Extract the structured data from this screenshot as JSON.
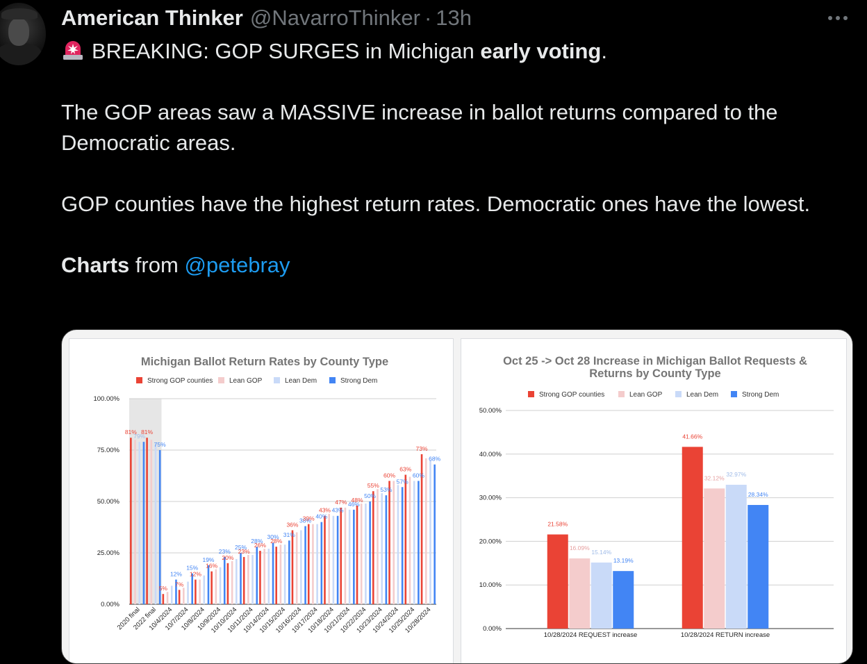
{
  "tweet": {
    "name": "American Thinker",
    "handle": "@NavarroThinker",
    "separator": "·",
    "time": "13h",
    "line1_text": "BREAKING: GOP SURGES in Michigan ",
    "line1_bold": "early voting",
    "line1_end": ".",
    "para2": "The GOP areas saw a MASSIVE increase in ballot returns compared to the Democratic areas.",
    "para3": "GOP counties have the highest return rates. Democratic ones have the lowest.",
    "charts_bold": "Charts",
    "charts_from": " from ",
    "mention": "@petebray"
  },
  "icons": {
    "siren": "police-siren-icon",
    "more": "more-horizontal-icon"
  },
  "colors": {
    "strong_gop": "#ea4335",
    "lean_gop": "#f4cccc",
    "lean_dem": "#c9daf8",
    "strong_dem": "#4285f4",
    "link": "#1d9bf0"
  },
  "chart_data": [
    {
      "type": "bar",
      "title": "Michigan Ballot Return Rates by County Type",
      "categories": [
        "2020 final",
        "2022 final",
        "10/4/2024",
        "10/7/2024",
        "10/8/2024",
        "10/9/2024",
        "10/10/2024",
        "10/11/2024",
        "10/14/2024",
        "10/15/2024",
        "10/16/2024",
        "10/17/2024",
        "10/18/2024",
        "10/21/2024",
        "10/22/2024",
        "10/23/2024",
        "10/24/2024",
        "10/25/2024",
        "10/28/2024"
      ],
      "series": [
        {
          "name": "Strong GOP counties",
          "values": [
            81,
            81,
            5,
            7,
            12,
            16,
            20,
            23,
            26,
            28,
            36,
            39,
            43,
            47,
            48,
            55,
            60,
            63,
            73
          ]
        },
        {
          "name": "Lean GOP",
          "values": [
            80,
            80,
            6,
            8,
            12,
            17,
            21,
            24,
            27,
            29,
            35,
            39,
            44,
            47,
            49,
            56,
            60,
            62,
            71
          ]
        },
        {
          "name": "Lean Dem",
          "values": [
            79,
            78,
            9,
            11,
            14,
            18,
            22,
            24,
            27,
            29,
            36,
            39,
            43,
            46,
            49,
            54,
            58,
            60,
            70
          ]
        },
        {
          "name": "Strong Dem",
          "values": [
            79,
            75,
            12,
            15,
            19,
            23,
            25,
            28,
            30,
            31,
            38,
            40,
            43,
            46,
            50,
            53,
            57,
            60,
            68
          ]
        }
      ],
      "data_labels": [
        {
          "i": 0,
          "s": 0,
          "t": "81%"
        },
        {
          "i": 0,
          "s": 2,
          "t": "79%"
        },
        {
          "i": 1,
          "s": 0,
          "t": "81%"
        },
        {
          "i": 1,
          "s": 3,
          "t": "75%"
        },
        {
          "i": 2,
          "s": 0,
          "t": "5%"
        },
        {
          "i": 2,
          "s": 3,
          "t": "12%"
        },
        {
          "i": 3,
          "s": 0,
          "t": "7%"
        },
        {
          "i": 3,
          "s": 3,
          "t": "15%"
        },
        {
          "i": 4,
          "s": 0,
          "t": "12%"
        },
        {
          "i": 4,
          "s": 3,
          "t": "19%"
        },
        {
          "i": 5,
          "s": 0,
          "t": "16%"
        },
        {
          "i": 5,
          "s": 3,
          "t": "23%"
        },
        {
          "i": 6,
          "s": 0,
          "t": "20%"
        },
        {
          "i": 6,
          "s": 3,
          "t": "25%"
        },
        {
          "i": 7,
          "s": 0,
          "t": "23%"
        },
        {
          "i": 7,
          "s": 3,
          "t": "28%"
        },
        {
          "i": 8,
          "s": 0,
          "t": "26%"
        },
        {
          "i": 8,
          "s": 3,
          "t": "30%"
        },
        {
          "i": 9,
          "s": 0,
          "t": "28%"
        },
        {
          "i": 9,
          "s": 3,
          "t": "31%"
        },
        {
          "i": 10,
          "s": 0,
          "t": "36%"
        },
        {
          "i": 10,
          "s": 3,
          "t": "38%"
        },
        {
          "i": 11,
          "s": 0,
          "t": "39%"
        },
        {
          "i": 11,
          "s": 3,
          "t": "40%"
        },
        {
          "i": 12,
          "s": 0,
          "t": "43%"
        },
        {
          "i": 12,
          "s": 3,
          "t": "43%"
        },
        {
          "i": 13,
          "s": 0,
          "t": "47%"
        },
        {
          "i": 13,
          "s": 3,
          "t": "46%"
        },
        {
          "i": 14,
          "s": 0,
          "t": "48%"
        },
        {
          "i": 14,
          "s": 3,
          "t": "50%"
        },
        {
          "i": 15,
          "s": 0,
          "t": "55%"
        },
        {
          "i": 15,
          "s": 3,
          "t": "53%"
        },
        {
          "i": 16,
          "s": 0,
          "t": "60%"
        },
        {
          "i": 16,
          "s": 3,
          "t": "57%"
        },
        {
          "i": 17,
          "s": 0,
          "t": "63%"
        },
        {
          "i": 17,
          "s": 3,
          "t": "60%"
        },
        {
          "i": 18,
          "s": 0,
          "t": "73%"
        },
        {
          "i": 18,
          "s": 3,
          "t": "68%"
        }
      ],
      "highlight_categories": [
        "2020 final",
        "2022 final"
      ],
      "y_ticks": [
        "0.00%",
        "25.00%",
        "50.00%",
        "75.00%",
        "100.00%"
      ],
      "ylim": [
        0,
        100
      ],
      "legend_position": "top",
      "grid": true
    },
    {
      "type": "bar",
      "title": "Oct 25 -> Oct 28 Increase in Michigan Ballot Requests & Returns by County Type",
      "categories": [
        "10/28/2024 REQUEST increase",
        "10/28/2024 RETURN increase"
      ],
      "series": [
        {
          "name": "Strong GOP counties",
          "values": [
            21.58,
            41.66
          ]
        },
        {
          "name": "Lean GOP",
          "values": [
            16.09,
            32.12
          ]
        },
        {
          "name": "Lean Dem",
          "values": [
            15.14,
            32.97
          ]
        },
        {
          "name": "Strong Dem",
          "values": [
            13.19,
            28.34
          ]
        }
      ],
      "value_labels": [
        [
          "21.58%",
          "16.09%",
          "15.14%",
          "13.19%"
        ],
        [
          "41.66%",
          "32.12%",
          "32.97%",
          "28.34%"
        ]
      ],
      "y_ticks": [
        "0.00%",
        "10.00%",
        "20.00%",
        "30.00%",
        "40.00%",
        "50.00%"
      ],
      "ylim": [
        0,
        50
      ],
      "legend_position": "top",
      "grid": true
    }
  ]
}
